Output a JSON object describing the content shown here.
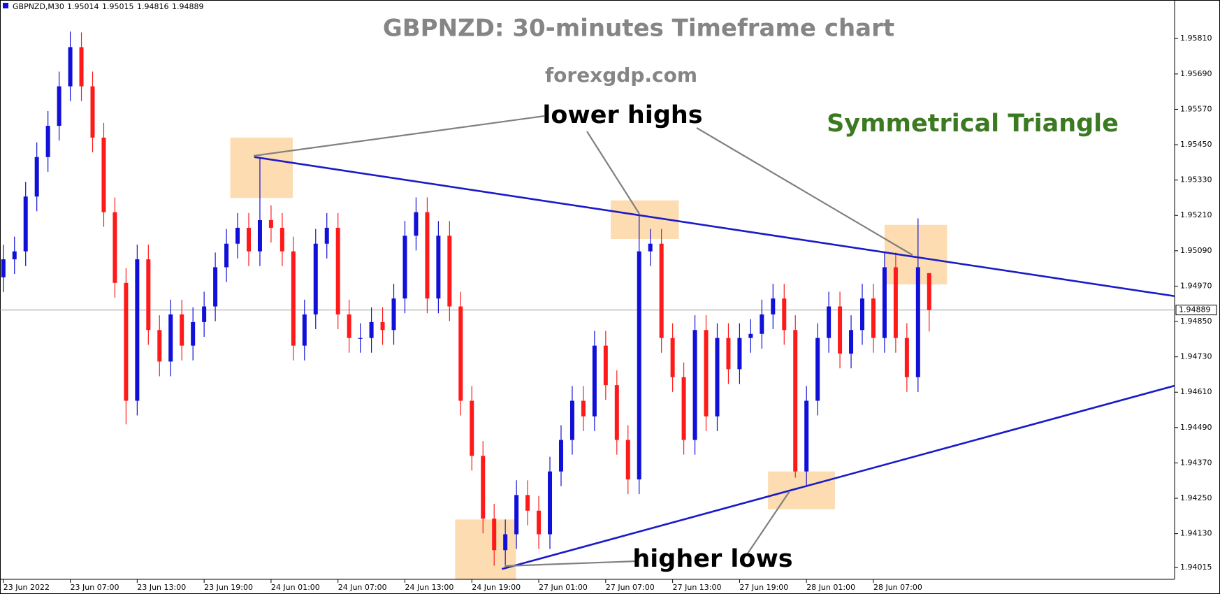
{
  "chart_data": {
    "type": "candlestick",
    "symbol": "GBPNZD,M30",
    "ohlc": [
      1.95014,
      1.95015,
      1.94816,
      1.94889
    ],
    "title": "GBPNZD: 30-minutes Timeframe chart",
    "subtitle": "forexgdp.com",
    "annotations": [
      "lower highs",
      "higher lows",
      "Symmetrical Triangle"
    ],
    "x": [
      0,
      2,
      4,
      6,
      8,
      10,
      12,
      14,
      16,
      18,
      20,
      22,
      24,
      26,
      28,
      30,
      32,
      34,
      36,
      38,
      40,
      42,
      44,
      46,
      48,
      50,
      52,
      54,
      56,
      58,
      60,
      62,
      64,
      66,
      68,
      70,
      72,
      74,
      76,
      78,
      80,
      82,
      84,
      86,
      88,
      90,
      92,
      94,
      96,
      98,
      100,
      102,
      104,
      106,
      108,
      110,
      112,
      114,
      116,
      118,
      120,
      122,
      124,
      126,
      128,
      130,
      132,
      134,
      136,
      138,
      140,
      142,
      144,
      146,
      148,
      150,
      152,
      154,
      156,
      158,
      160,
      162,
      164,
      166
    ],
    "open": [
      1.95,
      1.95061,
      1.95088,
      1.95274,
      1.95408,
      1.95514,
      1.95648,
      1.95781,
      1.95648,
      1.95474,
      1.95221,
      1.94981,
      1.94581,
      1.95061,
      1.94821,
      1.94714,
      1.94874,
      1.94768,
      1.94848,
      1.94901,
      1.95034,
      1.95114,
      1.95168,
      1.95088,
      1.95194,
      1.95168,
      1.95088,
      1.94768,
      1.94874,
      1.95114,
      1.95168,
      1.94874,
      1.94794,
      1.94794,
      1.94848,
      1.94821,
      1.94928,
      1.95141,
      1.95221,
      1.94928,
      1.95141,
      1.94901,
      1.94581,
      1.94394,
      1.94181,
      1.94074,
      1.94128,
      1.94261,
      1.94208,
      1.94128,
      1.94341,
      1.94448,
      1.94581,
      1.94528,
      1.94768,
      1.94634,
      1.94448,
      1.94314,
      1.95088,
      1.95114,
      1.94794,
      1.94661,
      1.94448,
      1.94821,
      1.94528,
      1.94794,
      1.94688,
      1.94794,
      1.94808,
      1.94874,
      1.94928,
      1.94821,
      1.94341,
      1.94581,
      1.94794,
      1.94901,
      1.94741,
      1.94821,
      1.94928,
      1.94794,
      1.95034,
      1.94794,
      1.94661,
      1.95014
    ],
    "high": [
      1.95111,
      1.95138,
      1.95324,
      1.95458,
      1.95564,
      1.95698,
      1.95834,
      1.95831,
      1.95698,
      1.95524,
      1.95271,
      1.95031,
      1.95111,
      1.95111,
      1.94871,
      1.94924,
      1.94924,
      1.94898,
      1.94951,
      1.95084,
      1.95164,
      1.95218,
      1.95218,
      1.95408,
      1.95244,
      1.95218,
      1.95138,
      1.94924,
      1.95164,
      1.95218,
      1.95218,
      1.94924,
      1.94844,
      1.94898,
      1.94898,
      1.94978,
      1.95191,
      1.95271,
      1.95271,
      1.95191,
      1.95191,
      1.94951,
      1.94631,
      1.94444,
      1.94231,
      1.94178,
      1.94311,
      1.94311,
      1.94258,
      1.94391,
      1.94498,
      1.94631,
      1.94631,
      1.94818,
      1.94818,
      1.94684,
      1.94498,
      1.95208,
      1.95164,
      1.95164,
      1.94844,
      1.94711,
      1.94871,
      1.94871,
      1.94844,
      1.94844,
      1.94844,
      1.94858,
      1.94924,
      1.94978,
      1.94978,
      1.94871,
      1.94631,
      1.94844,
      1.94951,
      1.94951,
      1.94871,
      1.94978,
      1.94978,
      1.95084,
      1.95084,
      1.94844,
      1.952,
      1.95015
    ],
    "low": [
      1.9495,
      1.95011,
      1.95038,
      1.95224,
      1.95358,
      1.95464,
      1.95598,
      1.95598,
      1.95424,
      1.95171,
      1.94931,
      1.94501,
      1.94531,
      1.94771,
      1.94664,
      1.94664,
      1.94718,
      1.94718,
      1.94798,
      1.94851,
      1.94984,
      1.95064,
      1.95038,
      1.95038,
      1.95118,
      1.95038,
      1.94718,
      1.94718,
      1.94824,
      1.95064,
      1.94824,
      1.94744,
      1.94744,
      1.94744,
      1.94771,
      1.94771,
      1.94878,
      1.95091,
      1.94878,
      1.94878,
      1.94851,
      1.94531,
      1.94344,
      1.94131,
      1.94021,
      1.94024,
      1.94078,
      1.94158,
      1.94078,
      1.94078,
      1.94291,
      1.94398,
      1.94478,
      1.94478,
      1.94584,
      1.94398,
      1.94264,
      1.94264,
      1.95038,
      1.94744,
      1.94611,
      1.94398,
      1.94398,
      1.94478,
      1.94478,
      1.94638,
      1.94638,
      1.94744,
      1.94758,
      1.94824,
      1.94771,
      1.9432,
      1.94291,
      1.94531,
      1.94744,
      1.94691,
      1.94691,
      1.94771,
      1.94744,
      1.94744,
      1.94744,
      1.94611,
      1.94611,
      1.94816
    ],
    "close": [
      1.95061,
      1.95088,
      1.95274,
      1.95408,
      1.95514,
      1.95648,
      1.95781,
      1.95648,
      1.95474,
      1.95221,
      1.94981,
      1.94581,
      1.95061,
      1.94821,
      1.94714,
      1.94874,
      1.94768,
      1.94848,
      1.94901,
      1.95034,
      1.95114,
      1.95168,
      1.95088,
      1.95194,
      1.95168,
      1.95088,
      1.94768,
      1.94874,
      1.95114,
      1.95168,
      1.94874,
      1.94794,
      1.94794,
      1.94848,
      1.94821,
      1.94928,
      1.95141,
      1.95221,
      1.94928,
      1.95141,
      1.94901,
      1.94581,
      1.94394,
      1.94181,
      1.94074,
      1.94128,
      1.94261,
      1.94208,
      1.94128,
      1.94341,
      1.94448,
      1.94581,
      1.94528,
      1.94768,
      1.94634,
      1.94448,
      1.94314,
      1.95088,
      1.95114,
      1.94794,
      1.94661,
      1.94448,
      1.94821,
      1.94528,
      1.94794,
      1.94688,
      1.94794,
      1.94808,
      1.94874,
      1.94928,
      1.94821,
      1.94341,
      1.94581,
      1.94794,
      1.94901,
      1.94741,
      1.94821,
      1.94928,
      1.94794,
      1.95034,
      1.94794,
      1.94661,
      1.95034,
      1.94889
    ],
    "up_color": "#1010d8",
    "down_color": "#ff1a1a",
    "current_price": 1.94889,
    "trendlines": [
      {
        "x": [
          45,
          210
        ],
        "y": [
          1.95408,
          1.94936
        ],
        "color": "#1a1ac8"
      },
      {
        "x": [
          89.4,
          210
        ],
        "y": [
          1.9401,
          1.94632
        ],
        "color": "#1a1ac8"
      }
    ],
    "highlights": [
      {
        "x": [
          40.7,
          51.9
        ],
        "y": [
          1.95269,
          1.95474
        ]
      },
      {
        "x": [
          108.9,
          121.1
        ],
        "y": [
          1.9513,
          1.95261
        ]
      },
      {
        "x": [
          158,
          169.2
        ],
        "y": [
          1.94976,
          1.95178
        ]
      },
      {
        "x": [
          81,
          91.9
        ],
        "y": [
          1.93973,
          1.94178
        ]
      },
      {
        "x": [
          137.1,
          149.1
        ],
        "y": [
          1.94213,
          1.94341
        ]
      }
    ],
    "highlight_color": "#fbd6a2",
    "xlim": [
      -0.6,
      210
    ],
    "ylim": [
      1.93975,
      1.95941
    ],
    "xticks": [
      {
        "value": 0,
        "label": "23 Jun 2022"
      },
      {
        "value": 12,
        "label": "23 Jun 07:00"
      },
      {
        "value": 24,
        "label": "23 Jun 13:00"
      },
      {
        "value": 36,
        "label": "23 Jun 19:00"
      },
      {
        "value": 48,
        "label": "24 Jun 01:00"
      },
      {
        "value": 60,
        "label": "24 Jun 07:00"
      },
      {
        "value": 72,
        "label": "24 Jun 13:00"
      },
      {
        "value": 84,
        "label": "24 Jun 19:00"
      },
      {
        "value": 96,
        "label": "27 Jun 01:00"
      },
      {
        "value": 108,
        "label": "27 Jun 07:00"
      },
      {
        "value": 120,
        "label": "27 Jun 13:00"
      },
      {
        "value": 132,
        "label": "27 Jun 19:00"
      },
      {
        "value": 144,
        "label": "28 Jun 01:00"
      },
      {
        "value": 156,
        "label": "28 Jun 07:00"
      }
    ],
    "yticks": [
      {
        "value": 1.9581,
        "label": "1.95810"
      },
      {
        "value": 1.9569,
        "label": "1.95690"
      },
      {
        "value": 1.9557,
        "label": "1.95570"
      },
      {
        "value": 1.9545,
        "label": "1.95450"
      },
      {
        "value": 1.9533,
        "label": "1.95330"
      },
      {
        "value": 1.9521,
        "label": "1.95210"
      },
      {
        "value": 1.9509,
        "label": "1.95090"
      },
      {
        "value": 1.9497,
        "label": "1.94970"
      },
      {
        "value": 1.9485,
        "label": "1.94850"
      },
      {
        "value": 1.9473,
        "label": "1.94730"
      },
      {
        "value": 1.9461,
        "label": "1.94610"
      },
      {
        "value": 1.9449,
        "label": "1.94490"
      },
      {
        "value": 1.9437,
        "label": "1.94370"
      },
      {
        "value": 1.9425,
        "label": "1.94250"
      },
      {
        "value": 1.9413,
        "label": "1.94130"
      },
      1.94015
    ],
    "grid": false
  }
}
